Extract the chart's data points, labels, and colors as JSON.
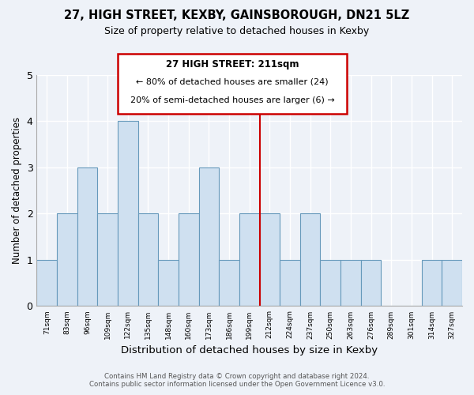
{
  "title1": "27, HIGH STREET, KEXBY, GAINSBOROUGH, DN21 5LZ",
  "title2": "Size of property relative to detached houses in Kexby",
  "xlabel": "Distribution of detached houses by size in Kexby",
  "ylabel": "Number of detached properties",
  "footnote1": "Contains HM Land Registry data © Crown copyright and database right 2024.",
  "footnote2": "Contains public sector information licensed under the Open Government Licence v3.0.",
  "bins": [
    "71sqm",
    "83sqm",
    "96sqm",
    "109sqm",
    "122sqm",
    "135sqm",
    "148sqm",
    "160sqm",
    "173sqm",
    "186sqm",
    "199sqm",
    "212sqm",
    "224sqm",
    "237sqm",
    "250sqm",
    "263sqm",
    "276sqm",
    "289sqm",
    "301sqm",
    "314sqm",
    "327sqm"
  ],
  "values": [
    1,
    2,
    3,
    2,
    4,
    2,
    1,
    2,
    3,
    1,
    2,
    2,
    1,
    2,
    1,
    1,
    1,
    0,
    0,
    1,
    1
  ],
  "bar_color": "#cfe0f0",
  "bar_edge_color": "#6699bb",
  "vline_color": "#cc0000",
  "vline_bin_index": 11,
  "annotation_title": "27 HIGH STREET: 211sqm",
  "annotation_line1": "← 80% of detached houses are smaller (24)",
  "annotation_line2": "20% of semi-detached houses are larger (6) →",
  "annotation_box_color": "#cc0000",
  "ylim": [
    0,
    5
  ],
  "yticks": [
    0,
    1,
    2,
    3,
    4,
    5
  ],
  "background_color": "#eef2f8"
}
